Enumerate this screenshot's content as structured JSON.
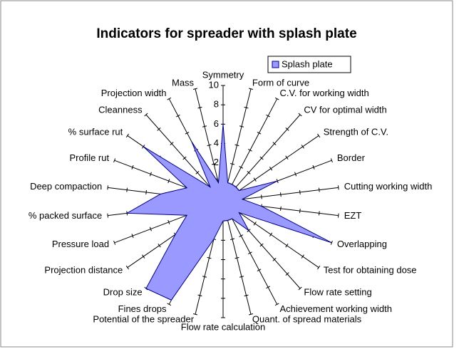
{
  "chart_data": {
    "type": "radar",
    "title": "Indicators for spreader with splash plate",
    "categories": [
      "Symmetry",
      "Form of curve",
      "C.V. for working width",
      "CV for optimal width",
      "Strength of C.V.",
      "Border",
      "Cutting working width",
      "EZT",
      "Overlapping",
      "Test for obtaining dose",
      "Flow rate setting",
      "Achievement working width",
      "Quant. of spread materials",
      "Flow rate calculation",
      "Potential of the spreader",
      "Fines drops",
      "Drop size",
      "Projection distance",
      "Pressure load",
      "% packed surface",
      "Deep compaction",
      "Profile rut",
      "% surface rut",
      "Cleanness",
      "Projection width",
      "Mass"
    ],
    "series": [
      {
        "name": "Splash plate",
        "color": "#9999ff",
        "values": [
          6,
          0,
          0,
          0,
          0,
          4,
          0,
          2,
          10,
          0,
          2,
          0,
          0,
          0,
          2,
          9.5,
          10,
          4,
          2,
          8,
          4.5,
          2,
          8,
          0,
          5,
          0
        ]
      }
    ],
    "ylim": [
      -2,
      10
    ],
    "yticks": [
      -2,
      0,
      2,
      4,
      6,
      8,
      10
    ],
    "legend": "top-right"
  }
}
